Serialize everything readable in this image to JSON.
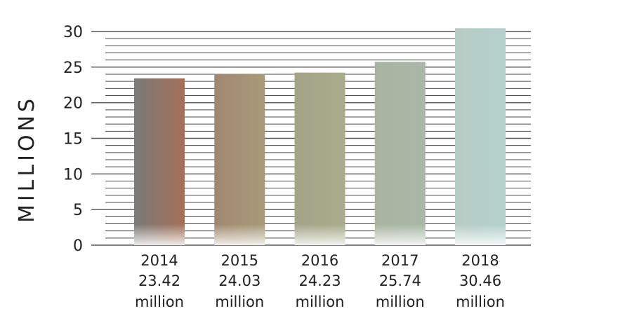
{
  "chart_data": {
    "type": "bar",
    "ylabel": "MILLIONS",
    "ylim": [
      0,
      30
    ],
    "yticks": [
      0,
      5,
      10,
      15,
      20,
      25,
      30
    ],
    "categories": [
      "2014",
      "2015",
      "2016",
      "2017",
      "2018"
    ],
    "values": [
      23.42,
      24.03,
      24.23,
      25.74,
      30.46
    ],
    "value_labels": [
      "23.42",
      "24.03",
      "24.23",
      "25.74",
      "30.46"
    ],
    "unit_label": "million",
    "bar_colors": [
      [
        "#7a7a78",
        "#a5705a"
      ],
      [
        "#a08870",
        "#a89a7a"
      ],
      [
        "#a3a488",
        "#a8ac8c"
      ],
      [
        "#a9b3a0",
        "#aab8a8"
      ],
      [
        "#b8ccc4",
        "#b4d0cc"
      ]
    ],
    "grid": true
  }
}
